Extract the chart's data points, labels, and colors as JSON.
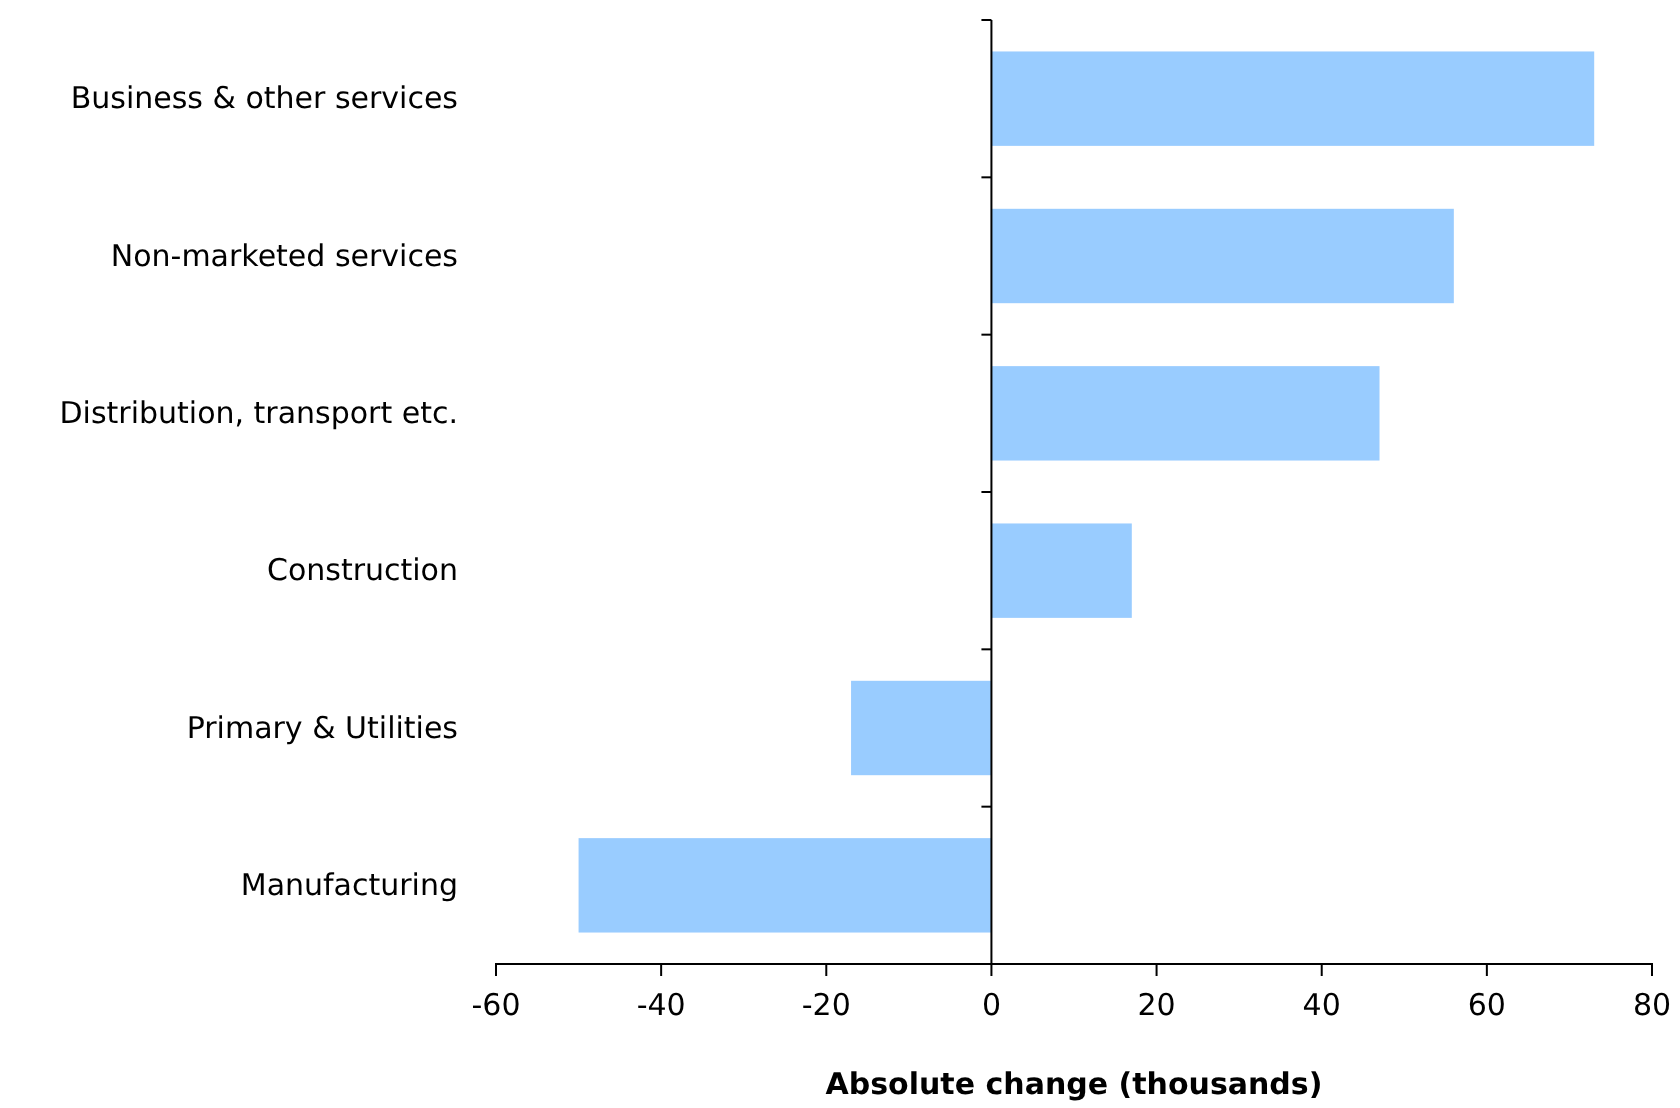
{
  "chart_data": {
    "type": "bar",
    "orientation": "horizontal",
    "categories": [
      "Business & other services",
      "Non-marketed services",
      "Distribution, transport etc.",
      "Construction",
      "Primary & Utilities",
      "Manufacturing"
    ],
    "values": [
      73,
      56,
      47,
      17,
      -17,
      -50
    ],
    "color": "#99ccff",
    "xlim": [
      -60,
      80
    ],
    "xticks": [
      -60,
      -40,
      -20,
      0,
      20,
      40,
      60,
      80
    ],
    "xlabel": "Absolute change (thousands)"
  }
}
